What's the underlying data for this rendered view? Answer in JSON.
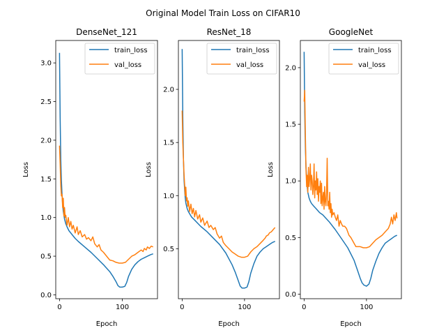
{
  "figure": {
    "suptitle": "Original Model Train Loss on CIFAR10"
  },
  "chart_data": [
    {
      "type": "line",
      "title": "DenseNet_121",
      "xlabel": "Epoch",
      "ylabel": "Loss",
      "xlim": [
        -6,
        156
      ],
      "ylim": [
        -0.05,
        3.29
      ],
      "xticks": [
        0,
        100
      ],
      "yticks": [
        0.0,
        0.5,
        1.0,
        1.5,
        2.0,
        2.5,
        3.0
      ],
      "ytick_labels": [
        "0.0",
        "0.5",
        "1.0",
        "1.5",
        "2.0",
        "2.5",
        "3.0"
      ],
      "legend_position": "top-right",
      "series": [
        {
          "name": "train_loss",
          "color": "#1f77b4",
          "x": [
            0,
            1,
            2,
            3,
            4,
            5,
            6,
            8,
            10,
            12,
            15,
            20,
            25,
            30,
            40,
            50,
            60,
            70,
            80,
            85,
            90,
            93,
            96,
            100,
            104,
            107,
            110,
            115,
            120,
            125,
            130,
            135,
            140,
            145,
            149
          ],
          "y": [
            3.13,
            2.3,
            1.75,
            1.48,
            1.3,
            1.17,
            1.08,
            0.98,
            0.92,
            0.88,
            0.83,
            0.78,
            0.73,
            0.69,
            0.62,
            0.55,
            0.47,
            0.39,
            0.3,
            0.24,
            0.17,
            0.12,
            0.1,
            0.1,
            0.11,
            0.16,
            0.24,
            0.33,
            0.39,
            0.43,
            0.46,
            0.48,
            0.5,
            0.52,
            0.53
          ]
        },
        {
          "name": "val_loss",
          "color": "#ff7f0e",
          "x": [
            0,
            1,
            2,
            3,
            4,
            5,
            6,
            7,
            8,
            9,
            10,
            12,
            14,
            16,
            18,
            20,
            22,
            25,
            28,
            30,
            33,
            36,
            40,
            43,
            46,
            50,
            53,
            56,
            60,
            63,
            66,
            70,
            75,
            80,
            85,
            90,
            95,
            100,
            105,
            110,
            115,
            120,
            125,
            130,
            133,
            135,
            138,
            140,
            143,
            146,
            149
          ],
          "y": [
            1.93,
            1.7,
            1.42,
            1.28,
            1.3,
            1.13,
            1.25,
            1.02,
            1.13,
            1.0,
            1.03,
            0.9,
            1.0,
            0.88,
            0.95,
            0.85,
            0.9,
            0.8,
            0.88,
            0.78,
            0.83,
            0.75,
            0.78,
            0.72,
            0.74,
            0.7,
            0.75,
            0.66,
            0.62,
            0.65,
            0.58,
            0.55,
            0.5,
            0.45,
            0.44,
            0.42,
            0.41,
            0.41,
            0.42,
            0.46,
            0.5,
            0.52,
            0.55,
            0.58,
            0.56,
            0.6,
            0.58,
            0.62,
            0.6,
            0.63,
            0.62
          ]
        }
      ]
    },
    {
      "type": "line",
      "title": "ResNet_18",
      "xlabel": "Epoch",
      "ylabel": "Loss",
      "xlim": [
        -6,
        156
      ],
      "ylim": [
        0.03,
        2.46
      ],
      "xticks": [
        0,
        100
      ],
      "yticks": [
        0.5,
        1.0,
        1.5,
        2.0
      ],
      "ytick_labels": [
        "0.5",
        "1.0",
        "1.5",
        "2.0"
      ],
      "legend_position": "top-right",
      "series": [
        {
          "name": "train_loss",
          "color": "#1f77b4",
          "x": [
            0,
            1,
            2,
            3,
            4,
            5,
            6,
            8,
            10,
            12,
            15,
            20,
            25,
            30,
            40,
            50,
            60,
            70,
            80,
            85,
            90,
            93,
            96,
            100,
            104,
            107,
            110,
            115,
            120,
            125,
            130,
            135,
            140,
            145,
            149
          ],
          "y": [
            2.38,
            1.75,
            1.35,
            1.15,
            1.05,
            0.98,
            0.93,
            0.88,
            0.85,
            0.83,
            0.8,
            0.77,
            0.74,
            0.71,
            0.66,
            0.6,
            0.54,
            0.46,
            0.35,
            0.28,
            0.2,
            0.15,
            0.13,
            0.13,
            0.14,
            0.19,
            0.27,
            0.36,
            0.43,
            0.47,
            0.5,
            0.52,
            0.54,
            0.56,
            0.57
          ]
        },
        {
          "name": "val_loss",
          "color": "#ff7f0e",
          "x": [
            0,
            1,
            2,
            3,
            4,
            5,
            6,
            7,
            8,
            9,
            10,
            12,
            14,
            16,
            18,
            20,
            22,
            25,
            28,
            30,
            33,
            36,
            40,
            43,
            46,
            50,
            53,
            56,
            60,
            63,
            66,
            70,
            75,
            80,
            85,
            90,
            95,
            100,
            105,
            110,
            115,
            120,
            125,
            130,
            133,
            135,
            138,
            140,
            143,
            146,
            149
          ],
          "y": [
            1.8,
            1.5,
            1.35,
            1.2,
            1.1,
            1.0,
            1.08,
            0.95,
            0.98,
            0.9,
            0.95,
            0.85,
            0.92,
            0.83,
            0.88,
            0.8,
            0.86,
            0.78,
            0.82,
            0.75,
            0.79,
            0.72,
            0.76,
            0.7,
            0.72,
            0.68,
            0.7,
            0.64,
            0.6,
            0.62,
            0.56,
            0.53,
            0.5,
            0.47,
            0.45,
            0.43,
            0.42,
            0.42,
            0.43,
            0.47,
            0.5,
            0.52,
            0.55,
            0.58,
            0.6,
            0.62,
            0.63,
            0.65,
            0.66,
            0.68,
            0.7
          ]
        }
      ]
    },
    {
      "type": "line",
      "title": "GoogleNet",
      "xlabel": "Epoch",
      "ylabel": "Loss",
      "xlim": [
        -6,
        156
      ],
      "ylim": [
        -0.04,
        2.24
      ],
      "xticks": [
        0,
        100
      ],
      "yticks": [
        0.0,
        0.5,
        1.0,
        1.5,
        2.0
      ],
      "ytick_labels": [
        "0.0",
        "0.5",
        "1.0",
        "1.5",
        "2.0"
      ],
      "legend_position": "top-right",
      "series": [
        {
          "name": "train_loss",
          "color": "#1f77b4",
          "x": [
            0,
            1,
            2,
            3,
            4,
            5,
            6,
            8,
            10,
            12,
            15,
            20,
            25,
            30,
            40,
            50,
            60,
            70,
            80,
            85,
            90,
            93,
            96,
            100,
            104,
            107,
            110,
            115,
            120,
            125,
            130,
            135,
            140,
            145,
            149
          ],
          "y": [
            2.14,
            1.6,
            1.3,
            1.12,
            1.02,
            0.95,
            0.9,
            0.85,
            0.82,
            0.8,
            0.78,
            0.75,
            0.72,
            0.7,
            0.64,
            0.57,
            0.49,
            0.41,
            0.3,
            0.22,
            0.14,
            0.1,
            0.08,
            0.07,
            0.09,
            0.14,
            0.21,
            0.29,
            0.36,
            0.41,
            0.45,
            0.47,
            0.49,
            0.51,
            0.52
          ]
        },
        {
          "name": "val_loss",
          "color": "#ff7f0e",
          "x": [
            0,
            1,
            2,
            3,
            4,
            5,
            6,
            7,
            8,
            9,
            10,
            11,
            12,
            13,
            14,
            15,
            16,
            17,
            18,
            19,
            20,
            21,
            22,
            23,
            24,
            25,
            26,
            27,
            28,
            29,
            30,
            31,
            32,
            33,
            34,
            35,
            36,
            37,
            38,
            39,
            40,
            41,
            42,
            43,
            44,
            45,
            46,
            48,
            50,
            52,
            54,
            56,
            58,
            60,
            62,
            65,
            68,
            70,
            72,
            75,
            78,
            80,
            83,
            86,
            90,
            95,
            100,
            105,
            110,
            115,
            120,
            125,
            130,
            135,
            138,
            140,
            142,
            144,
            146,
            148,
            149
          ],
          "y": [
            1.7,
            1.8,
            1.4,
            1.1,
            0.95,
            1.05,
            0.9,
            1.12,
            0.95,
            1.02,
            1.15,
            0.92,
            1.05,
            1.0,
            0.88,
            0.95,
            1.15,
            0.85,
            1.0,
            0.92,
            1.08,
            0.88,
            1.02,
            0.82,
            0.95,
            0.9,
            1.0,
            0.8,
            0.98,
            0.78,
            0.85,
            0.9,
            0.75,
            0.95,
            0.82,
            0.78,
            0.9,
            1.2,
            0.78,
            0.82,
            0.75,
            0.9,
            0.72,
            0.8,
            0.68,
            0.75,
            0.7,
            0.72,
            0.68,
            0.65,
            0.7,
            0.6,
            0.65,
            0.62,
            0.6,
            0.6,
            0.58,
            0.55,
            0.52,
            0.5,
            0.47,
            0.45,
            0.42,
            0.42,
            0.42,
            0.41,
            0.41,
            0.42,
            0.45,
            0.48,
            0.5,
            0.52,
            0.55,
            0.58,
            0.62,
            0.68,
            0.62,
            0.7,
            0.65,
            0.72,
            0.67
          ]
        }
      ]
    }
  ]
}
